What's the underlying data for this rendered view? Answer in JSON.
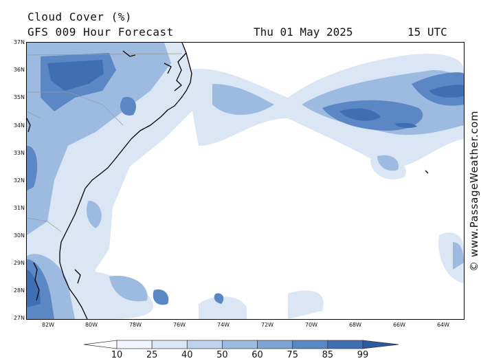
{
  "title": {
    "variable": "Cloud Cover (%)",
    "forecast": "GFS 009 Hour Forecast",
    "date": "Thu 01 May 2025",
    "hour": "15 UTC"
  },
  "credit": "© www.PassageWeather.com",
  "map": {
    "lat_labels": [
      "37N",
      "36N",
      "35N",
      "34N",
      "33N",
      "32N",
      "31N",
      "30N",
      "29N",
      "28N",
      "27N"
    ],
    "lon_labels": [
      "82W",
      "80W",
      "78W",
      "76W",
      "74W",
      "72W",
      "70W",
      "68W",
      "66W",
      "64W"
    ],
    "region": "US Southeast coast and western Atlantic"
  },
  "legend": {
    "ticks": [
      "10",
      "25",
      "40",
      "50",
      "60",
      "75",
      "85",
      "99"
    ],
    "colors": [
      "#ffffff",
      "#f2f6fc",
      "#dbe6f4",
      "#bfd2ec",
      "#9dbbe1",
      "#7ea4d5",
      "#5b87c4",
      "#3f6eb3",
      "#2c5a9e"
    ]
  }
}
